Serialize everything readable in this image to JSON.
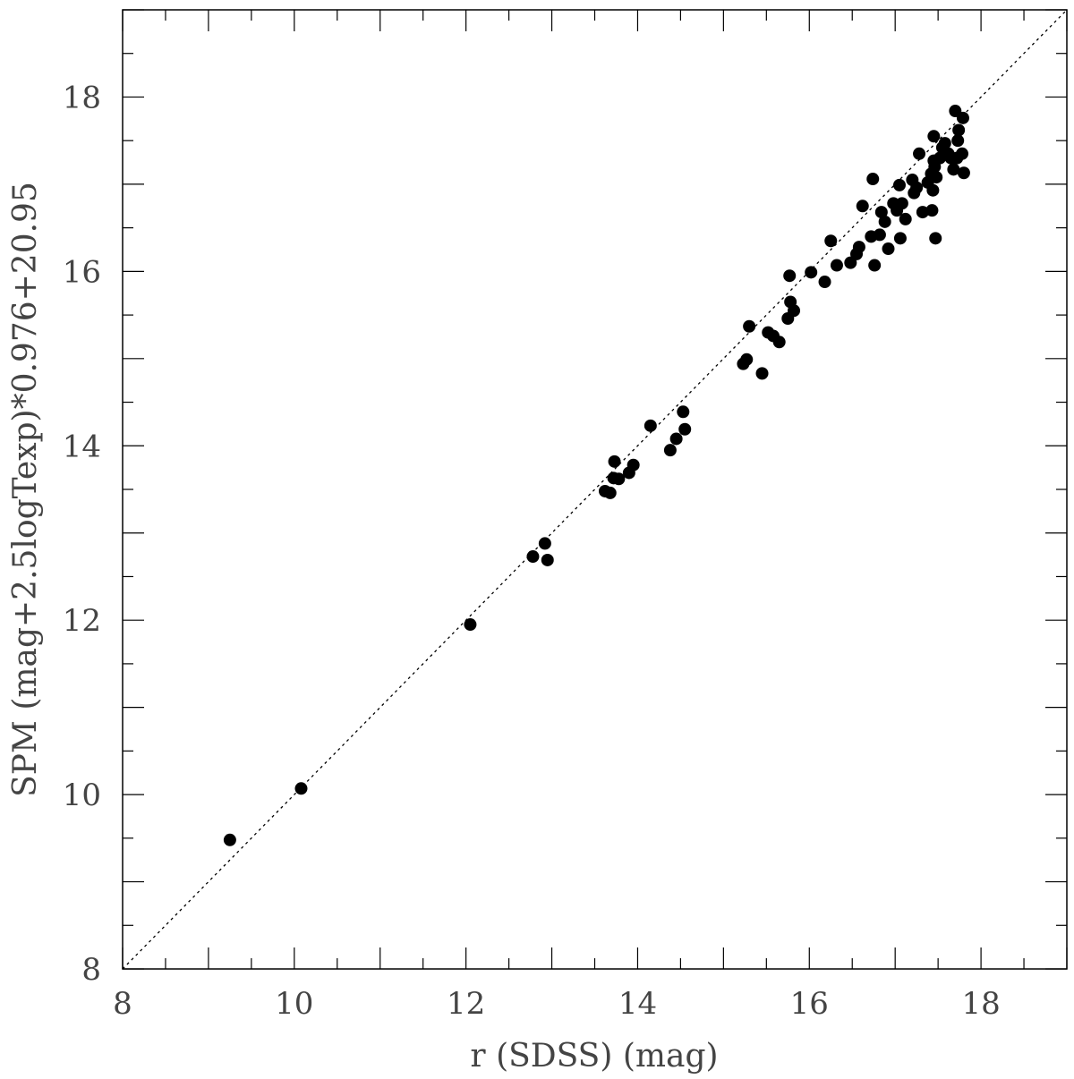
{
  "chart_data": {
    "type": "scatter",
    "title": "",
    "xlabel": "r (SDSS) (mag)",
    "ylabel": "SPM (mag+2.5logTexp)*0.976+20.95",
    "xlim": [
      8,
      19
    ],
    "ylim": [
      8,
      19
    ],
    "x_ticks": [
      8,
      10,
      12,
      14,
      16,
      18
    ],
    "y_ticks": [
      8,
      10,
      12,
      14,
      16,
      18
    ],
    "x_tick_labels": [
      "8",
      "10",
      "12",
      "14",
      "16",
      "18"
    ],
    "y_tick_labels": [
      "8",
      "10",
      "12",
      "14",
      "16",
      "18"
    ],
    "minor_tick_step": 0.5,
    "grid": false,
    "reference_line": {
      "style": "dotted",
      "from": [
        8,
        8
      ],
      "to": [
        19,
        19
      ]
    },
    "marker_color": "#000000",
    "points": [
      [
        9.25,
        9.48
      ],
      [
        10.08,
        10.07
      ],
      [
        12.05,
        11.95
      ],
      [
        12.78,
        12.73
      ],
      [
        12.92,
        12.88
      ],
      [
        12.95,
        12.69
      ],
      [
        13.62,
        13.48
      ],
      [
        13.68,
        13.46
      ],
      [
        13.72,
        13.63
      ],
      [
        13.73,
        13.82
      ],
      [
        13.78,
        13.62
      ],
      [
        13.9,
        13.69
      ],
      [
        13.95,
        13.78
      ],
      [
        14.15,
        14.23
      ],
      [
        14.38,
        13.95
      ],
      [
        14.45,
        14.08
      ],
      [
        14.53,
        14.39
      ],
      [
        14.55,
        14.19
      ],
      [
        15.23,
        14.94
      ],
      [
        15.27,
        14.99
      ],
      [
        15.3,
        15.37
      ],
      [
        15.45,
        14.83
      ],
      [
        15.52,
        15.3
      ],
      [
        15.58,
        15.26
      ],
      [
        15.65,
        15.19
      ],
      [
        15.75,
        15.46
      ],
      [
        15.77,
        15.95
      ],
      [
        15.78,
        15.65
      ],
      [
        15.82,
        15.55
      ],
      [
        16.02,
        15.99
      ],
      [
        16.18,
        15.88
      ],
      [
        16.25,
        16.35
      ],
      [
        16.32,
        16.07
      ],
      [
        16.48,
        16.1
      ],
      [
        16.55,
        16.2
      ],
      [
        16.58,
        16.28
      ],
      [
        16.62,
        16.75
      ],
      [
        16.72,
        16.4
      ],
      [
        16.74,
        17.06
      ],
      [
        16.76,
        16.07
      ],
      [
        16.82,
        16.42
      ],
      [
        16.84,
        16.68
      ],
      [
        16.88,
        16.57
      ],
      [
        16.92,
        16.26
      ],
      [
        16.98,
        16.78
      ],
      [
        17.02,
        16.7
      ],
      [
        17.05,
        16.99
      ],
      [
        17.06,
        16.38
      ],
      [
        17.08,
        16.78
      ],
      [
        17.12,
        16.6
      ],
      [
        17.2,
        17.05
      ],
      [
        17.22,
        16.9
      ],
      [
        17.25,
        16.96
      ],
      [
        17.28,
        17.35
      ],
      [
        17.32,
        16.68
      ],
      [
        17.38,
        17.02
      ],
      [
        17.42,
        17.12
      ],
      [
        17.43,
        16.7
      ],
      [
        17.44,
        16.93
      ],
      [
        17.45,
        17.27
      ],
      [
        17.45,
        17.55
      ],
      [
        17.46,
        17.2
      ],
      [
        17.47,
        16.38
      ],
      [
        17.48,
        17.08
      ],
      [
        17.52,
        17.3
      ],
      [
        17.55,
        17.42
      ],
      [
        17.58,
        17.47
      ],
      [
        17.62,
        17.35
      ],
      [
        17.65,
        17.3
      ],
      [
        17.68,
        17.17
      ],
      [
        17.7,
        17.84
      ],
      [
        17.72,
        17.3
      ],
      [
        17.73,
        17.5
      ],
      [
        17.74,
        17.62
      ],
      [
        17.78,
        17.35
      ],
      [
        17.79,
        17.76
      ],
      [
        17.8,
        17.13
      ]
    ]
  }
}
